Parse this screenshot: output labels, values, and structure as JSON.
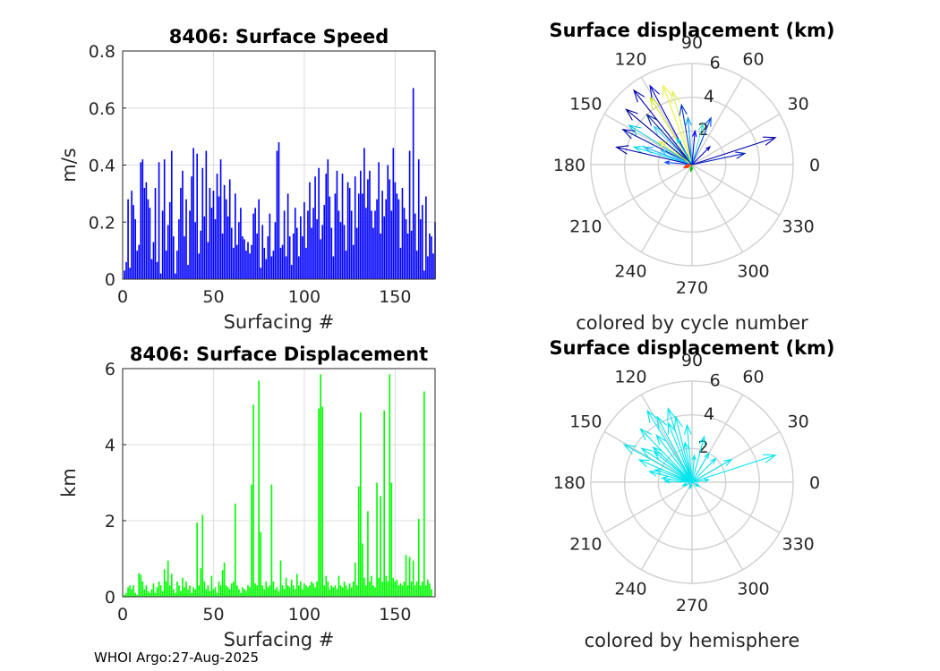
{
  "footer": "WHOI Argo:27-Aug-2025",
  "chart_data": [
    {
      "type": "bar",
      "title": "8406: Surface Speed",
      "xlabel": "Surfacing #",
      "ylabel": "m/s",
      "xlim": [
        0,
        172
      ],
      "ylim": [
        0,
        0.8
      ],
      "xticks": [
        "0",
        "50",
        "100",
        "150"
      ],
      "yticks": [
        "0",
        "0.2",
        "0.4",
        "0.6",
        "0.8"
      ],
      "color": "#0000ff",
      "values": [
        0.03,
        0.06,
        0.28,
        0.04,
        0.31,
        0.26,
        0.21,
        0.1,
        0.12,
        0.41,
        0.42,
        0.32,
        0.34,
        0.28,
        0.25,
        0.07,
        0.13,
        0.32,
        0.06,
        0.41,
        0.02,
        0.24,
        0.42,
        0.1,
        0.19,
        0.27,
        0.45,
        0.15,
        0.02,
        0.1,
        0.21,
        0.32,
        0.38,
        0.15,
        0.28,
        0.05,
        0.24,
        0.36,
        0.46,
        0.2,
        0.44,
        0.09,
        0.17,
        0.39,
        0.22,
        0.45,
        0.13,
        0.32,
        0.25,
        0.31,
        0.21,
        0.37,
        0.29,
        0.42,
        0.16,
        0.33,
        0.28,
        0.22,
        0.35,
        0.18,
        0.11,
        0.3,
        0.12,
        0.2,
        0.25,
        0.15,
        0.14,
        0.1,
        0.13,
        0.09,
        0.12,
        0.23,
        0.25,
        0.16,
        0.28,
        0.04,
        0.19,
        0.11,
        0.07,
        0.15,
        0.23,
        0.08,
        0.1,
        0.2,
        0.45,
        0.48,
        0.11,
        0.12,
        0.24,
        0.08,
        0.3,
        0.15,
        0.05,
        0.16,
        0.25,
        0.18,
        0.08,
        0.22,
        0.15,
        0.27,
        0.11,
        0.24,
        0.34,
        0.18,
        0.25,
        0.36,
        0.21,
        0.39,
        0.14,
        0.19,
        0.26,
        0.37,
        0.42,
        0.29,
        0.18,
        0.08,
        0.3,
        0.38,
        0.24,
        0.2,
        0.37,
        0.19,
        0.1,
        0.34,
        0.32,
        0.24,
        0.12,
        0.36,
        0.18,
        0.3,
        0.38,
        0.3,
        0.46,
        0.25,
        0.35,
        0.38,
        0.24,
        0.18,
        0.24,
        0.28,
        0.41,
        0.16,
        0.31,
        0.22,
        0.28,
        0.4,
        0.35,
        0.24,
        0.46,
        0.34,
        0.3,
        0.28,
        0.11,
        0.32,
        0.25,
        0.21,
        0.16,
        0.45,
        0.17,
        0.67,
        0.23,
        0.1,
        0.42,
        0.21,
        0.26,
        0.03,
        0.29,
        0.08,
        0.16,
        0.15,
        0.09,
        0.2
      ]
    },
    {
      "type": "polar",
      "title": "Surface displacement (km)",
      "caption": "colored by cycle number",
      "rmax": 6,
      "rticks": [
        "2",
        "4",
        "6"
      ],
      "angles": [
        "0",
        "30",
        "60",
        "90",
        "120",
        "150",
        "180",
        "210",
        "240",
        "270",
        "300",
        "330"
      ],
      "arrows": [
        {
          "theta": 18,
          "r": 5.2,
          "color": "#0000aa"
        },
        {
          "theta": 12,
          "r": 3.2,
          "color": "#0020c0"
        },
        {
          "theta": 128,
          "r": 5.6,
          "color": "#0000aa"
        },
        {
          "theta": 118,
          "r": 5.3,
          "color": "#0000cc"
        },
        {
          "theta": 110,
          "r": 5.0,
          "color": "#e8f040"
        },
        {
          "theta": 122,
          "r": 4.7,
          "color": "#d0e820"
        },
        {
          "theta": 140,
          "r": 5.1,
          "color": "#000090"
        },
        {
          "theta": 148,
          "r": 4.4,
          "color": "#00c8e0"
        },
        {
          "theta": 153,
          "r": 4.6,
          "color": "#0010b0"
        },
        {
          "theta": 163,
          "r": 3.6,
          "color": "#00e0f0"
        },
        {
          "theta": 167,
          "r": 4.6,
          "color": "#0000a0"
        },
        {
          "theta": 160,
          "r": 3.0,
          "color": "#20b0ff"
        },
        {
          "theta": 135,
          "r": 3.2,
          "color": "#40d0ff"
        },
        {
          "theta": 100,
          "r": 3.6,
          "color": "#0030d0"
        },
        {
          "theta": 105,
          "r": 4.5,
          "color": "#e0f050"
        },
        {
          "theta": 95,
          "r": 2.8,
          "color": "#00a0ff"
        },
        {
          "theta": 75,
          "r": 2.5,
          "color": "#40e0d0"
        },
        {
          "theta": 68,
          "r": 3.0,
          "color": "#0050e0"
        },
        {
          "theta": 45,
          "r": 1.5,
          "color": "#0000c0"
        },
        {
          "theta": 145,
          "r": 2.4,
          "color": "#e8f030"
        },
        {
          "theta": 155,
          "r": 2.0,
          "color": "#30c0ff"
        },
        {
          "theta": 175,
          "r": 1.6,
          "color": "#0040ff"
        },
        {
          "theta": 200,
          "r": 0.5,
          "color": "#ff2000"
        },
        {
          "theta": 190,
          "r": 0.4,
          "color": "#ff4000"
        },
        {
          "theta": 260,
          "r": 0.4,
          "color": "#00c000"
        },
        {
          "theta": 120,
          "r": 1.8,
          "color": "#00e0ff"
        },
        {
          "theta": 85,
          "r": 2.0,
          "color": "#0000ff"
        },
        {
          "theta": 132,
          "r": 4.0,
          "color": "#002090"
        }
      ]
    },
    {
      "type": "bar",
      "title": "8406: Surface Displacement",
      "xlabel": "Surfacing #",
      "ylabel": "km",
      "xlim": [
        0,
        172
      ],
      "ylim": [
        0,
        6
      ],
      "xticks": [
        "0",
        "50",
        "100",
        "150"
      ],
      "yticks": [
        "0",
        "2",
        "4",
        "6"
      ],
      "color": "#00ff00",
      "values": [
        0.05,
        0.1,
        0.25,
        0.3,
        0.2,
        0.3,
        0.1,
        0.05,
        0.62,
        0.58,
        0.4,
        0.2,
        0.3,
        0.15,
        0.1,
        0.2,
        0.35,
        0.1,
        0.25,
        0.4,
        0.3,
        0.15,
        0.72,
        0.4,
        0.95,
        0.3,
        0.6,
        0.2,
        0.1,
        0.4,
        0.3,
        0.15,
        0.5,
        0.25,
        0.4,
        0.2,
        0.3,
        0.1,
        0.25,
        0.2,
        1.95,
        0.3,
        0.75,
        2.15,
        0.4,
        0.2,
        0.3,
        0.15,
        0.55,
        0.2,
        0.25,
        0.1,
        0.4,
        0.3,
        0.7,
        0.9,
        0.3,
        0.25,
        0.2,
        0.35,
        0.4,
        2.45,
        0.3,
        0.2,
        0.1,
        0.25,
        0.2,
        0.15,
        0.3,
        0.25,
        2.95,
        5.05,
        0.35,
        0.3,
        5.68,
        1.7,
        0.3,
        0.2,
        0.4,
        0.25,
        0.3,
        2.95,
        0.4,
        0.2,
        0.25,
        0.15,
        0.95,
        0.3,
        0.2,
        0.5,
        0.3,
        0.25,
        0.45,
        0.3,
        0.2,
        0.6,
        0.3,
        0.4,
        0.2,
        0.35,
        0.3,
        0.25,
        0.3,
        0.4,
        0.35,
        0.25,
        0.4,
        4.95,
        5.85,
        5.0,
        0.3,
        0.55,
        0.4,
        0.2,
        0.3,
        0.25,
        0.3,
        0.2,
        0.55,
        0.3,
        0.25,
        0.4,
        0.3,
        0.2,
        0.35,
        0.25,
        0.4,
        0.9,
        0.3,
        2.9,
        4.85,
        1.4,
        0.5,
        0.3,
        2.25,
        0.4,
        0.55,
        0.3,
        0.25,
        3.0,
        0.5,
        2.65,
        0.4,
        4.9,
        0.55,
        0.4,
        5.85,
        3.0,
        0.5,
        0.4,
        0.45,
        0.3,
        0.35,
        0.3,
        0.4,
        1.1,
        0.3,
        1.05,
        0.4,
        0.95,
        0.3,
        0.4,
        2.05,
        0.3,
        0.4,
        5.4,
        0.3,
        0.45,
        0.35,
        0.2
      ]
    },
    {
      "type": "polar",
      "title": "Surface displacement (km)",
      "caption": "colored by hemisphere",
      "rmax": 6,
      "rticks": [
        "2",
        "4",
        "6"
      ],
      "angles": [
        "0",
        "30",
        "60",
        "90",
        "120",
        "150",
        "180",
        "210",
        "240",
        "270",
        "300",
        "330"
      ],
      "arrows": [
        {
          "theta": 18,
          "r": 5.2,
          "color": "#00e5ee"
        },
        {
          "theta": 30,
          "r": 2.7,
          "color": "#00e5ee"
        },
        {
          "theta": 45,
          "r": 2.0,
          "color": "#00e5ee"
        },
        {
          "theta": 60,
          "r": 2.0,
          "color": "#00e5ee"
        },
        {
          "theta": 75,
          "r": 2.8,
          "color": "#00e5ee"
        },
        {
          "theta": 95,
          "r": 3.4,
          "color": "#00e5ee"
        },
        {
          "theta": 104,
          "r": 4.0,
          "color": "#00e5ee"
        },
        {
          "theta": 108,
          "r": 4.6,
          "color": "#00e5ee"
        },
        {
          "theta": 112,
          "r": 3.8,
          "color": "#00e5ee"
        },
        {
          "theta": 118,
          "r": 4.4,
          "color": "#00e5ee"
        },
        {
          "theta": 122,
          "r": 5.0,
          "color": "#00e5ee"
        },
        {
          "theta": 127,
          "r": 3.5,
          "color": "#00e5ee"
        },
        {
          "theta": 134,
          "r": 4.4,
          "color": "#00e5ee"
        },
        {
          "theta": 141,
          "r": 2.9,
          "color": "#00e5ee"
        },
        {
          "theta": 146,
          "r": 3.6,
          "color": "#00e5ee"
        },
        {
          "theta": 151,
          "r": 4.6,
          "color": "#00e5ee"
        },
        {
          "theta": 157,
          "r": 3.4,
          "color": "#00e5ee"
        },
        {
          "theta": 161,
          "r": 2.3,
          "color": "#00e5ee"
        },
        {
          "theta": 166,
          "r": 2.6,
          "color": "#00e5ee"
        },
        {
          "theta": 172,
          "r": 1.8,
          "color": "#00e5ee"
        },
        {
          "theta": 178,
          "r": 1.6,
          "color": "#00e5ee"
        },
        {
          "theta": 8,
          "r": 1.0,
          "color": "#00e5ee"
        },
        {
          "theta": 200,
          "r": 0.6,
          "color": "#00e5ee"
        },
        {
          "theta": 250,
          "r": 0.4,
          "color": "#00e5ee"
        },
        {
          "theta": 330,
          "r": 0.5,
          "color": "#00e5ee"
        },
        {
          "theta": 100,
          "r": 2.4,
          "color": "#00e5ee"
        },
        {
          "theta": 138,
          "r": 3.1,
          "color": "#00e5ee"
        },
        {
          "theta": 85,
          "r": 1.6,
          "color": "#00e5ee"
        }
      ]
    }
  ]
}
